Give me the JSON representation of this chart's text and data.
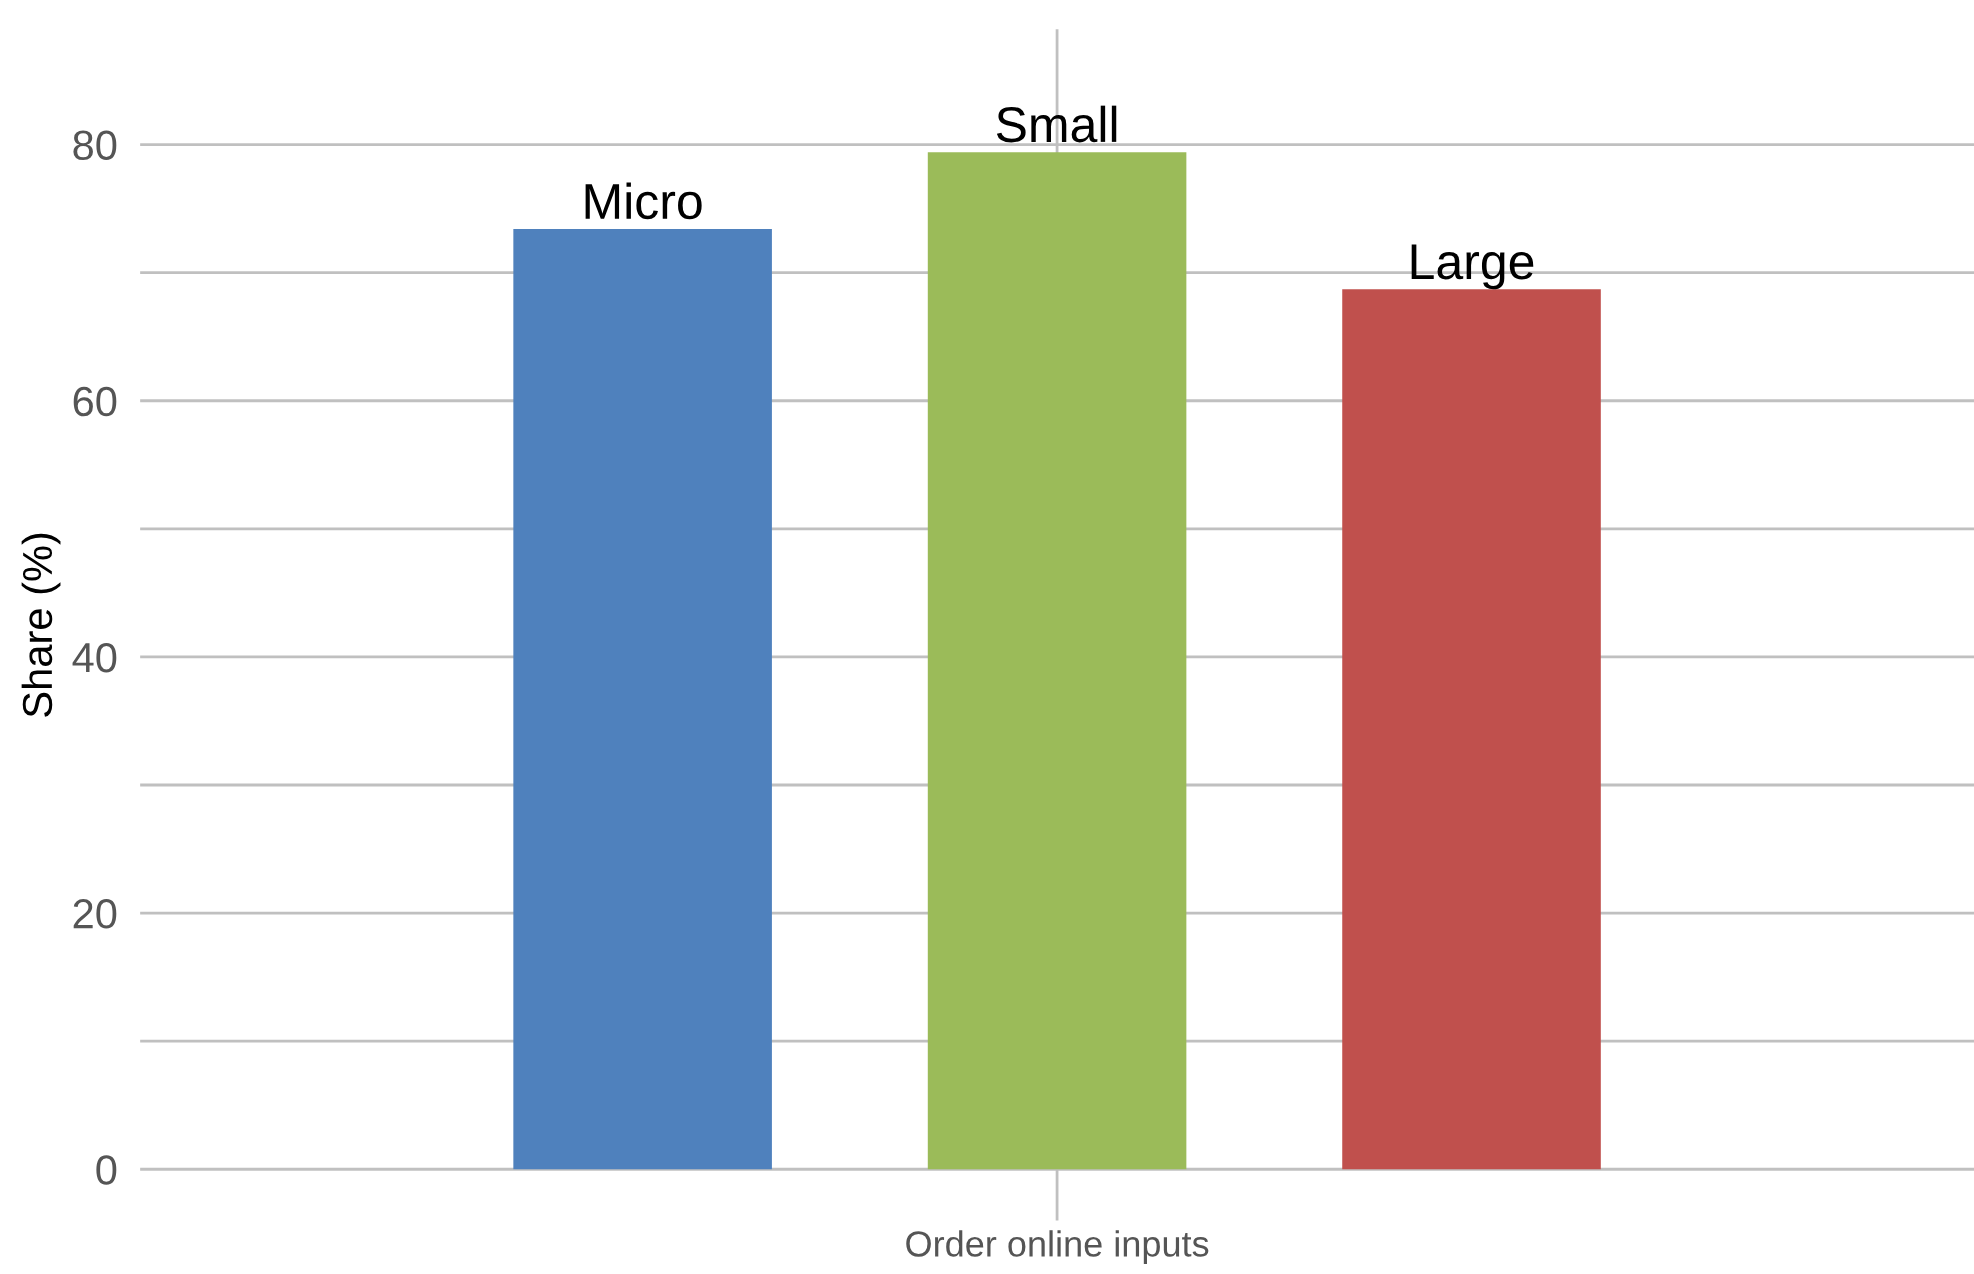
{
  "chart_data": {
    "type": "bar",
    "categories": [
      "Order online inputs"
    ],
    "ylabel": "Share (%)",
    "series": [
      {
        "name": "Micro",
        "color": "#4f81bd",
        "values": [
          73.4
        ]
      },
      {
        "name": "Small",
        "color": "#9bbb59",
        "values": [
          79.4
        ]
      },
      {
        "name": "Large",
        "color": "#c0504d",
        "values": [
          68.7
        ]
      }
    ],
    "ylim": [
      -4,
      89
    ],
    "yticks": [
      0,
      {
        "value": 10,
        "label": null
      },
      20,
      {
        "value": 30,
        "label": null
      },
      40,
      {
        "value": 50,
        "label": null
      },
      60,
      {
        "value": 70,
        "label": null
      },
      80
    ],
    "grid": true,
    "legend": false
  }
}
